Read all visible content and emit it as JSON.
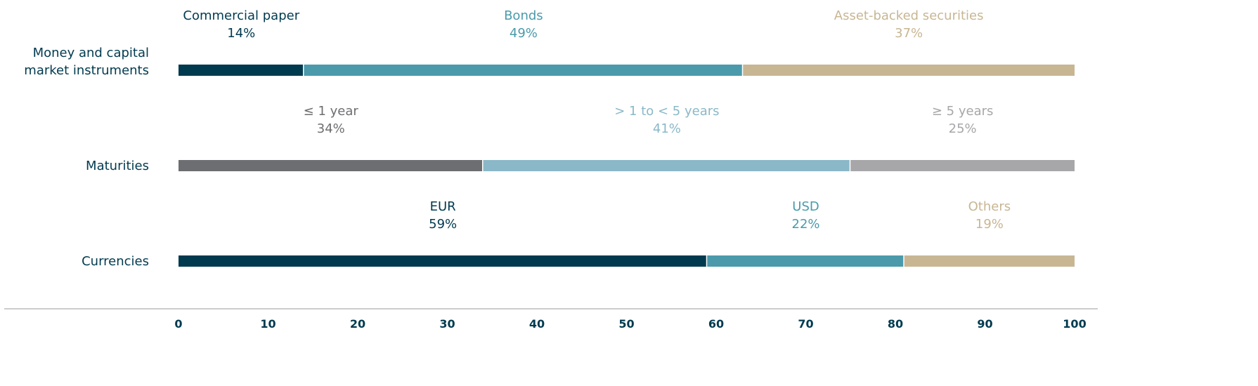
{
  "chart_data": {
    "type": "stacked_bar",
    "orientation": "horizontal",
    "rows": [
      {
        "category": "Money and capital market instruments",
        "names": [
          "Commercial paper",
          "Bonds",
          "Asset-backed securities"
        ],
        "colors": [
          "#003a4f",
          "#4a9aab",
          "#c8b693"
        ],
        "label_colors": [
          "#003a4f",
          "#4a9aab",
          "#c8b693"
        ],
        "values": [
          14,
          49,
          37
        ],
        "value_labels": [
          "14%",
          "49%",
          "37%"
        ]
      },
      {
        "category": "Maturities",
        "names": [
          "≤ 1 year",
          "> 1 to < 5 years",
          "≥ 5 years"
        ],
        "colors": [
          "#6d6e71",
          "#8ab8c8",
          "#a7a7aa"
        ],
        "label_colors": [
          "#6d6e71",
          "#8ab8c8",
          "#a7a7aa"
        ],
        "values": [
          34,
          41,
          25
        ],
        "value_labels": [
          "34%",
          "41%",
          "25%"
        ]
      },
      {
        "category": "Currencies",
        "names": [
          "EUR",
          "USD",
          "Others"
        ],
        "colors": [
          "#003a4f",
          "#4a9aab",
          "#c8b693"
        ],
        "label_colors": [
          "#003a4f",
          "#4a9aab",
          "#c8b693"
        ],
        "values": [
          59,
          22,
          19
        ],
        "value_labels": [
          "59%",
          "22%",
          "19%"
        ]
      }
    ],
    "xlim": [
      0,
      100
    ],
    "xticks": [
      0,
      10,
      20,
      30,
      40,
      50,
      60,
      70,
      80,
      90,
      100
    ]
  }
}
